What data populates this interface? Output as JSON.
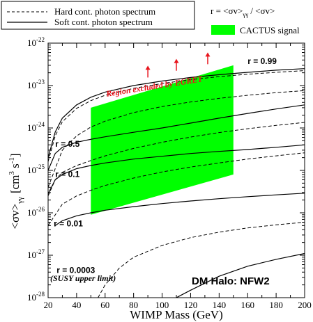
{
  "chart_data": {
    "type": "line",
    "xlabel": "WIMP Mass (GeV)",
    "ylabel": "<σv>γγ [cm3 s-1]",
    "ylabel_main": "<σv>",
    "ylabel_sub": "γγ",
    "ylabel_units": "[cm",
    "ylabel_units_exp1": "3",
    "ylabel_units_mid": " s",
    "ylabel_units_exp2": "-1",
    "ylabel_units_end": "]",
    "xlim": [
      20,
      200
    ],
    "ylim": [
      1e-28,
      1e-22
    ],
    "yscale": "log",
    "xticks": [
      "20",
      "40",
      "60",
      "80",
      "100",
      "120",
      "140",
      "160",
      "180",
      "200"
    ],
    "yticks": [
      {
        "base": "10",
        "exp": "-28",
        "value": 1e-28
      },
      {
        "base": "10",
        "exp": "-27",
        "value": 1e-27
      },
      {
        "base": "10",
        "exp": "-26",
        "value": 1e-26
      },
      {
        "base": "10",
        "exp": "-25",
        "value": 1e-25
      },
      {
        "base": "10",
        "exp": "-24",
        "value": 1e-24
      },
      {
        "base": "10",
        "exp": "-23",
        "value": 1e-23
      },
      {
        "base": "10",
        "exp": "-22",
        "value": 1e-22
      }
    ],
    "legend": {
      "hard": "Hard cont. photon spectrum",
      "soft": "Soft cont. photon spectrum",
      "ratio": "r = <σv>γγ / <σv>",
      "ratio_pre": "r = <σv>",
      "ratio_sub": "γγ",
      "ratio_post": "/ <σv>",
      "cactus": "CACTUS signal",
      "cactus_color": "#00ff00"
    },
    "cactus_region": {
      "x": [
        50,
        150
      ],
      "lower": [
        9e-27,
        8e-26
      ],
      "upper": [
        3e-24,
        3e-23
      ]
    },
    "series": [
      {
        "r_label": "r = 0.99",
        "style": "soft",
        "points": [
          [
            20,
            2e-25
          ],
          [
            25,
            8e-25
          ],
          [
            30,
            1.7e-24
          ],
          [
            40,
            3.5e-24
          ],
          [
            50,
            5.3e-24
          ],
          [
            60,
            7e-24
          ],
          [
            80,
            1e-23
          ],
          [
            100,
            1.28e-23
          ],
          [
            120,
            1.55e-23
          ],
          [
            140,
            1.8e-23
          ],
          [
            160,
            2.05e-23
          ],
          [
            180,
            2.3e-23
          ],
          [
            200,
            2.5e-23
          ]
        ]
      },
      {
        "r_label": "",
        "style": "hard",
        "points": [
          [
            20,
            1.6e-25
          ],
          [
            25,
            6.5e-25
          ],
          [
            30,
            1.4e-24
          ],
          [
            40,
            2.9e-24
          ],
          [
            50,
            4.4e-24
          ],
          [
            60,
            5.9e-24
          ],
          [
            80,
            8.6e-24
          ],
          [
            100,
            1.12e-23
          ],
          [
            120,
            1.38e-23
          ],
          [
            140,
            1.62e-23
          ],
          [
            160,
            1.85e-23
          ],
          [
            180,
            2.05e-23
          ],
          [
            200,
            2.25e-23
          ]
        ]
      },
      {
        "r_label": "",
        "style": "hard",
        "points": [
          [
            20,
            4e-26
          ],
          [
            30,
            3e-25
          ],
          [
            40,
            6.5e-25
          ],
          [
            50,
            1.05e-24
          ],
          [
            60,
            1.45e-24
          ],
          [
            80,
            2.3e-24
          ],
          [
            100,
            3.2e-24
          ],
          [
            120,
            4.1e-24
          ],
          [
            140,
            5e-24
          ],
          [
            160,
            5.9e-24
          ],
          [
            180,
            6.8e-24
          ],
          [
            200,
            7.6e-24
          ]
        ]
      },
      {
        "r_label": "r = 0.5",
        "style": "soft",
        "points": [
          [
            20,
            1e-25
          ],
          [
            25,
            2.5e-25
          ],
          [
            30,
            3.5e-25
          ],
          [
            40,
            4.6e-25
          ],
          [
            50,
            5.4e-25
          ],
          [
            60,
            6.2e-25
          ],
          [
            80,
            7.9e-25
          ],
          [
            100,
            1e-24
          ],
          [
            120,
            1.3e-24
          ],
          [
            140,
            1.7e-24
          ],
          [
            160,
            2.2e-24
          ],
          [
            180,
            2.8e-24
          ],
          [
            200,
            3.5e-24
          ]
        ]
      },
      {
        "r_label": "",
        "style": "hard",
        "points": [
          [
            20,
            2.5e-26
          ],
          [
            25,
            6e-26
          ],
          [
            30,
            9e-26
          ],
          [
            40,
            1.3e-25
          ],
          [
            50,
            1.7e-25
          ],
          [
            60,
            2.2e-25
          ],
          [
            80,
            3.3e-25
          ],
          [
            100,
            4.6e-25
          ],
          [
            120,
            6.1e-25
          ],
          [
            140,
            7.8e-25
          ],
          [
            160,
            9.6e-25
          ],
          [
            180,
            1.15e-24
          ],
          [
            200,
            1.35e-24
          ]
        ]
      },
      {
        "r_label": "r = 0.1",
        "style": "soft",
        "points": [
          [
            20,
            2.8e-26
          ],
          [
            25,
            6e-26
          ],
          [
            30,
            8e-26
          ],
          [
            40,
            1.1e-25
          ],
          [
            50,
            1.3e-25
          ],
          [
            60,
            1.5e-25
          ],
          [
            80,
            1.85e-25
          ],
          [
            100,
            2.15e-25
          ],
          [
            120,
            2.5e-25
          ],
          [
            140,
            2.8e-25
          ],
          [
            160,
            3.1e-25
          ],
          [
            180,
            3.5e-25
          ],
          [
            200,
            4e-25
          ]
        ]
      },
      {
        "r_label": "",
        "style": "hard",
        "points": [
          [
            20,
            5e-27
          ],
          [
            30,
            1.6e-26
          ],
          [
            40,
            2.5e-26
          ],
          [
            50,
            3.4e-26
          ],
          [
            60,
            4.4e-26
          ],
          [
            80,
            6.6e-26
          ],
          [
            100,
            9.2e-26
          ],
          [
            120,
            1.2e-25
          ],
          [
            140,
            1.5e-25
          ],
          [
            160,
            1.85e-25
          ],
          [
            180,
            2.2e-25
          ],
          [
            200,
            2.6e-25
          ]
        ]
      },
      {
        "r_label": "r = 0.01",
        "style": "soft",
        "points": [
          [
            25,
            5e-27
          ],
          [
            30,
            6.5e-27
          ],
          [
            40,
            8.5e-27
          ],
          [
            50,
            1e-26
          ],
          [
            60,
            1.15e-26
          ],
          [
            80,
            1.4e-26
          ],
          [
            100,
            1.65e-26
          ],
          [
            120,
            1.9e-26
          ],
          [
            140,
            2.15e-26
          ],
          [
            160,
            2.4e-26
          ],
          [
            180,
            2.65e-26
          ],
          [
            200,
            2.9e-26
          ]
        ]
      },
      {
        "r_label": "",
        "style": "hard",
        "points": [
          [
            55,
            1e-28
          ],
          [
            60,
            2e-28
          ],
          [
            70,
            5e-28
          ],
          [
            80,
            9e-28
          ],
          [
            100,
            1.7e-27
          ],
          [
            120,
            2.6e-27
          ],
          [
            140,
            3.5e-27
          ],
          [
            160,
            4.4e-27
          ],
          [
            180,
            5.2e-27
          ],
          [
            200,
            6e-27
          ]
        ]
      },
      {
        "r_label": "r = 0.0003",
        "style": "soft",
        "points": [
          [
            110,
            1e-28
          ],
          [
            120,
            1.5e-28
          ],
          [
            140,
            3.2e-28
          ],
          [
            160,
            5.5e-28
          ],
          [
            180,
            8e-28
          ],
          [
            200,
            1.1e-27
          ]
        ]
      }
    ],
    "annotations": {
      "egret": "Region excluded by EGRET",
      "susy": "(SUSY upper limit)",
      "halo": "DM Halo: NFW2"
    },
    "grid": false,
    "colors": {
      "cactus": "#00ff00",
      "egret": "#e8141c"
    }
  }
}
